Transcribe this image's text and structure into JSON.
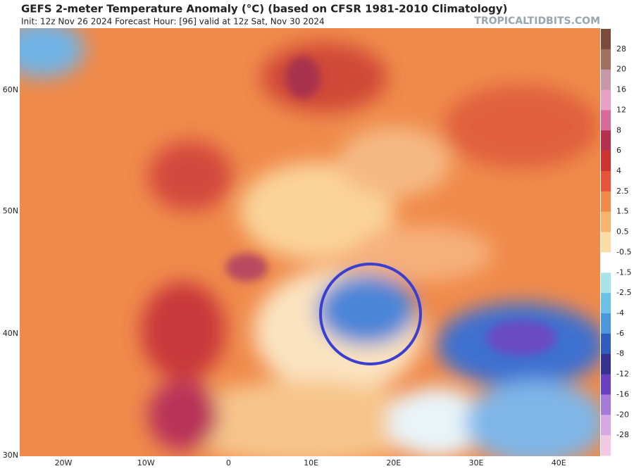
{
  "header": {
    "title": "GEFS 2-meter Temperature Anomaly (°C) (based on CFSR 1981-2010 Climatology)",
    "subtitle": "Init: 12z Nov 26 2024   Forecast Hour: [96]   valid at 12z Sat, Nov 30 2024",
    "watermark": "TROPICALTIDBITS.COM"
  },
  "colorbar": {
    "labels": [
      28,
      20,
      16,
      12,
      8,
      6,
      4,
      2.5,
      1.5,
      0.5,
      -0.5,
      -1.5,
      -2.5,
      -4,
      -6,
      -8,
      -12,
      -16,
      -20,
      -28
    ]
  },
  "axes": {
    "lat_labels": [
      "60N",
      "50N",
      "40N",
      "30N"
    ],
    "lon_labels": [
      "20W",
      "10W",
      "0",
      "10E",
      "20E",
      "30E",
      "40E"
    ]
  }
}
